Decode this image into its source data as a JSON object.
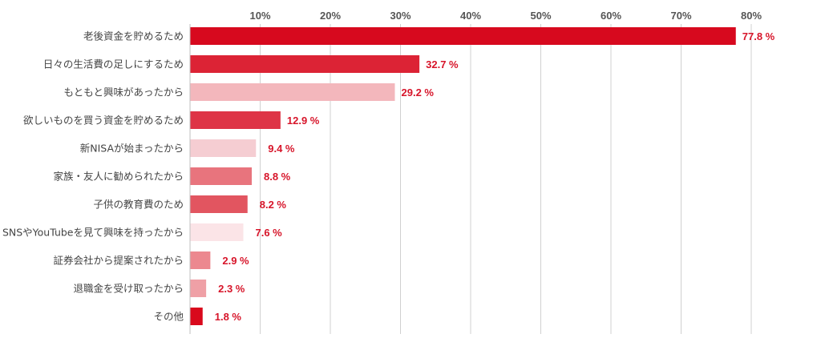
{
  "chart_data": {
    "type": "bar",
    "orientation": "horizontal",
    "title": "",
    "xlabel": "",
    "ylabel": "",
    "xlim": [
      0,
      80
    ],
    "ticks": [
      10,
      20,
      30,
      40,
      50,
      60,
      70,
      80
    ],
    "tick_labels": [
      "10%",
      "20%",
      "30%",
      "40%",
      "50%",
      "60%",
      "70%",
      "80%"
    ],
    "grid": true,
    "legend": "none",
    "value_label_color": "#d7152a",
    "categories": [
      "老後資金を貯めるため",
      "日々の生活費の足しにするため",
      "もともと興味があったから",
      "欲しいものを買う資金を貯めるため",
      "新NISAが始まったから",
      "家族・友人に勧められたから",
      "子供の教育費のため",
      "SNSやYouTubeを見て興味を持ったから",
      "証券会社から提案されたから",
      "退職金を受け取ったから",
      "その他"
    ],
    "values": [
      77.8,
      32.7,
      29.2,
      12.9,
      9.4,
      8.8,
      8.2,
      7.6,
      2.9,
      2.3,
      1.8
    ],
    "value_labels": [
      "77.8 %",
      "32.7 %",
      "29.2 %",
      "12.9 %",
      "9.4 %",
      "8.8 %",
      "8.2 %",
      "7.6 %",
      "2.9 %",
      "2.3 %",
      "1.8 %"
    ],
    "bar_colors": [
      "#d7091e",
      "#dc2335",
      "#f3b7bc",
      "#de3446",
      "#f5cdd2",
      "#e8747d",
      "#e25560",
      "#fbe4e7",
      "#ec888f",
      "#efa0a6",
      "#d9091c"
    ]
  }
}
